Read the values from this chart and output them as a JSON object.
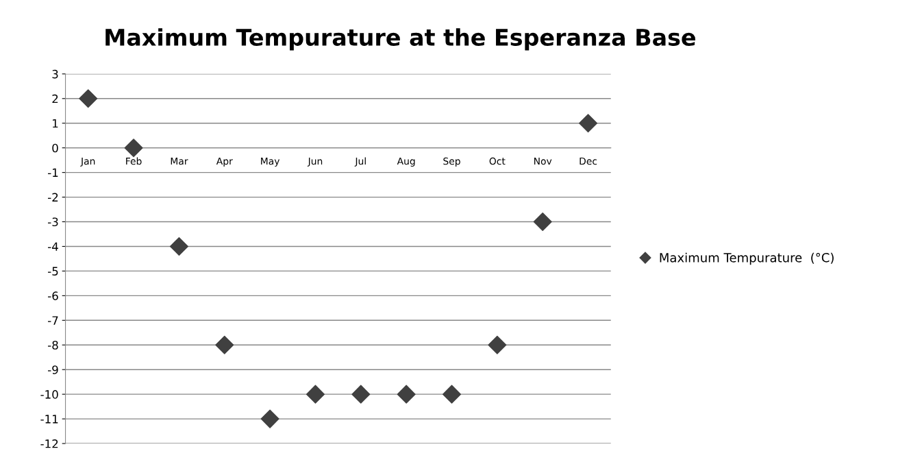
{
  "chart_data": {
    "type": "scatter",
    "title": "Maximum Tempurature at the Esperanza Base",
    "categories": [
      "Jan",
      "Feb",
      "Mar",
      "Apr",
      "May",
      "Jun",
      "Jul",
      "Aug",
      "Sep",
      "Oct",
      "Nov",
      "Dec"
    ],
    "series": [
      {
        "name": "Maximum Tempurature  (°C)",
        "color": "#404040",
        "values": [
          2,
          0,
          -4,
          -8,
          -11,
          -10,
          -10,
          -10,
          -10,
          -8,
          -3,
          1
        ]
      }
    ],
    "ylim": [
      -12,
      3
    ],
    "yticks": [
      -12,
      -11,
      -10,
      -9,
      -8,
      -7,
      -6,
      -5,
      -4,
      -3,
      -2,
      -1,
      0,
      1,
      2,
      3
    ],
    "grid": "y",
    "legend": "right",
    "marker": "diamond"
  }
}
